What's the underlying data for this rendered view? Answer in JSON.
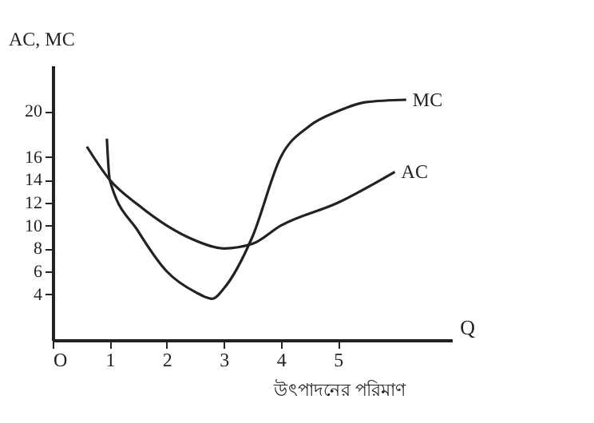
{
  "chart_data": {
    "type": "line",
    "xlabel": "Q",
    "ylabel": "AC, MC",
    "annotations": [
      "উৎপাদনের পরিমাণ"
    ],
    "series": [
      {
        "name": "MC",
        "color": "#222222",
        "x": [
          0.95,
          1,
          1.5,
          2,
          2.5,
          2.8,
          3,
          3.5,
          4,
          4.5,
          5,
          5.5,
          6.2
        ],
        "values": [
          17.6,
          14,
          9.5,
          6,
          4.2,
          3.6,
          4.5,
          9,
          16,
          18.7,
          20,
          20.8,
          21
        ]
      },
      {
        "name": "AC",
        "color": "#222222",
        "x": [
          0.6,
          1,
          1.5,
          2,
          2.5,
          3,
          3.5,
          4,
          5,
          6
        ],
        "values": [
          16.9,
          14,
          11.8,
          10,
          8.7,
          8,
          8.4,
          10,
          12,
          14.7
        ]
      }
    ],
    "xlim": [
      0,
      7
    ],
    "ylim": [
      0,
      24
    ],
    "xticks": [
      {
        "value": 0,
        "label": "O"
      },
      1,
      2,
      3,
      4,
      5
    ],
    "yticks": [
      4,
      6,
      8,
      10,
      12,
      14,
      16,
      20
    ],
    "grid": false,
    "marker": "none",
    "line_style": "solid"
  }
}
